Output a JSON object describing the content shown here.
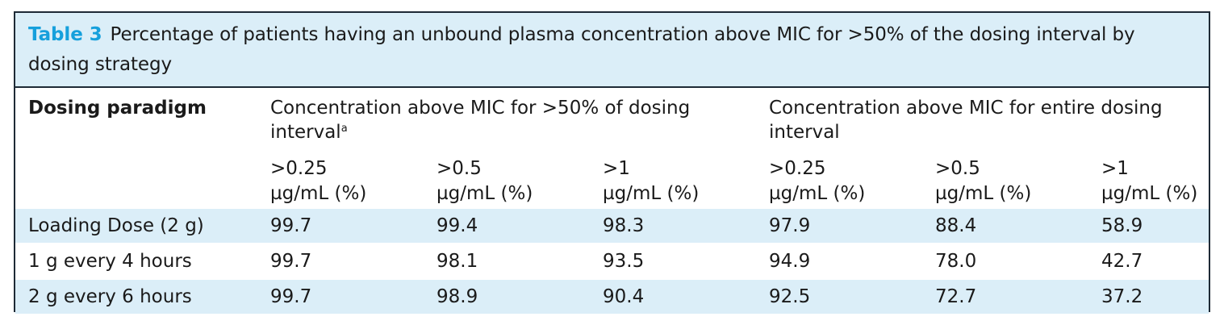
{
  "caption": {
    "label": "Table 3",
    "text": "Percentage of patients having an unbound plasma concentration above MIC for >50% of the dosing interval by dosing strategy"
  },
  "header": {
    "dosing_paradigm": "Dosing paradigm",
    "group1": "Concentration above MIC for >50% of dosing interval",
    "group1_footnote": "a",
    "group2": "Concentration above MIC for entire dosing interval",
    "subcolumns": [
      {
        "line1": ">0.25",
        "line2": "µg/mL (%)"
      },
      {
        "line1": ">0.5",
        "line2": "µg/mL (%)"
      },
      {
        "line1": ">1",
        "line2": "µg/mL (%)"
      },
      {
        "line1": ">0.25",
        "line2": "µg/mL (%)"
      },
      {
        "line1": ">0.5",
        "line2": "µg/mL (%)"
      },
      {
        "line1": ">1",
        "line2": "µg/mL (%)"
      }
    ]
  },
  "rows": [
    {
      "paradigm": "Loading Dose (2 g)",
      "values": [
        "99.7",
        "99.4",
        "98.3",
        "97.9",
        "88.4",
        "58.9"
      ]
    },
    {
      "paradigm": "1 g every 4 hours",
      "values": [
        "99.7",
        "98.1",
        "93.5",
        "94.9",
        "78.0",
        "42.7"
      ]
    },
    {
      "paradigm": "2 g every 6 hours",
      "values": [
        "99.7",
        "98.9",
        "90.4",
        "92.5",
        "72.7",
        "37.2"
      ]
    }
  ],
  "colors": {
    "caption_label": "#16a0dc",
    "shaded_background": "#dbeef8",
    "border": "#1e2a36"
  }
}
